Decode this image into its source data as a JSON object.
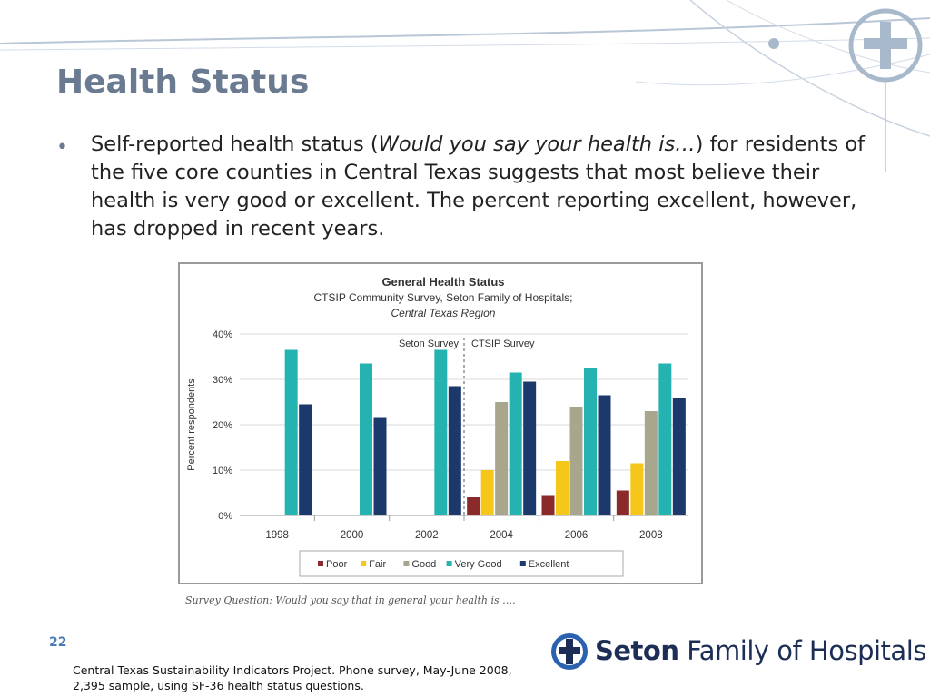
{
  "slide": {
    "title": "Health Status",
    "bullet_pre": "Self-reported health status (",
    "bullet_italic": "Would you say your health is…",
    "bullet_post": ") for residents of the five core counties in Central Texas suggests that most believe their health is very good or excellent.  The percent reporting excellent, however, has dropped in recent years.",
    "caption": "Survey Question:  Would you say that in general your health is ….",
    "page_number": "22",
    "source": "Central Texas Sustainability Indicators Project.  Phone survey, May-June 2008, 2,395 sample, using SF-36 health status questions.",
    "logo_strong": "Seton",
    "logo_rest": " Family of Hospitals"
  },
  "colors": {
    "title": "#6a7b91",
    "Poor": "#8b2a2a",
    "Fair": "#f5c71a",
    "Good": "#a8a68c",
    "Very Good": "#24b3b0",
    "Excellent": "#1b3a6b"
  },
  "chart_data": {
    "type": "bar",
    "title": "General Health Status",
    "subtitle1": "CTSIP Community Survey, Seton Family of Hospitals;",
    "subtitle2": "Central Texas Region",
    "ylabel": "Percent respondents",
    "ylim": [
      0,
      40
    ],
    "yticks": [
      "0%",
      "10%",
      "20%",
      "30%",
      "40%"
    ],
    "categories": [
      "1998",
      "2000",
      "2002",
      "2004",
      "2006",
      "2008"
    ],
    "series": [
      {
        "name": "Poor",
        "values": [
          null,
          null,
          null,
          4,
          4.5,
          5.5
        ]
      },
      {
        "name": "Fair",
        "values": [
          null,
          null,
          null,
          10,
          12,
          11.5
        ]
      },
      {
        "name": "Good",
        "values": [
          null,
          null,
          null,
          25,
          24,
          23
        ]
      },
      {
        "name": "Very Good",
        "values": [
          36.5,
          33.5,
          36.5,
          31.5,
          32.5,
          33.5
        ]
      },
      {
        "name": "Excellent",
        "values": [
          24.5,
          21.5,
          28.5,
          29.5,
          26.5,
          26
        ]
      }
    ],
    "annotations": {
      "left": "Seton Survey",
      "right": "CTSIP Survey"
    },
    "grid": true,
    "legend_position": "bottom"
  }
}
